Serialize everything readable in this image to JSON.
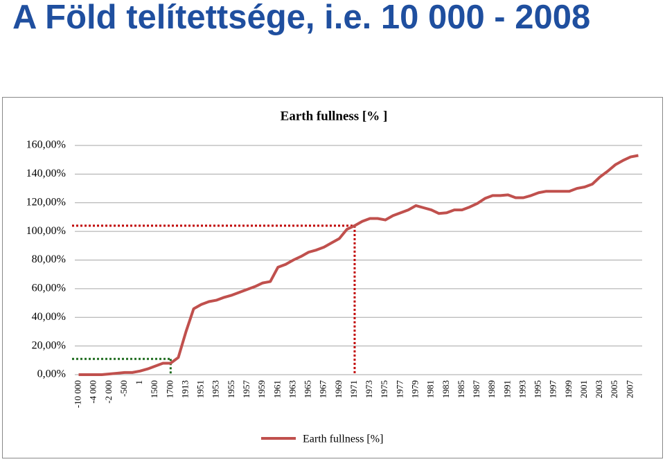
{
  "header": {
    "title": "A Föld telítettsége, i.e. 10 000 - 2008"
  },
  "chart_data": {
    "type": "line",
    "title": "Earth fullness [% ]",
    "categories": [
      "-10 000",
      null,
      "-4 000",
      null,
      "-2 000",
      null,
      "-500",
      null,
      "1",
      null,
      "1500",
      null,
      "1700",
      null,
      "1913",
      null,
      "1951",
      null,
      "1953",
      null,
      "1955",
      null,
      "1957",
      null,
      "1959",
      null,
      "1961",
      null,
      "1963",
      null,
      "1965",
      null,
      "1967",
      null,
      "1969",
      null,
      "1971",
      null,
      "1973",
      null,
      "1975",
      null,
      "1977",
      null,
      "1979",
      null,
      "1981",
      null,
      "1983",
      null,
      "1985",
      null,
      "1987",
      null,
      "1989",
      null,
      "1991",
      null,
      "1993",
      null,
      "1995",
      null,
      "1997",
      null,
      "1999",
      null,
      "2001",
      null,
      "2003",
      null,
      "2005",
      null,
      "2007",
      null
    ],
    "series": [
      {
        "name": "Earth fullness [%]",
        "color": "#c0504d",
        "values": [
          0,
          0,
          0,
          0,
          0.5,
          1,
          1.5,
          1.5,
          2.5,
          4,
          6,
          8,
          8,
          12,
          30,
          46,
          49,
          51,
          52,
          54,
          55.5,
          57.5,
          59.5,
          61.5,
          64,
          65,
          75,
          77,
          80,
          82.5,
          85.5,
          87,
          89,
          92,
          95,
          101.5,
          104,
          107,
          109,
          109,
          108,
          111,
          113,
          115,
          118,
          116.5,
          115,
          112.5,
          113,
          115,
          115,
          117,
          119.5,
          123,
          125,
          125,
          125.5,
          123.5,
          123.5,
          125,
          127,
          128,
          128,
          128,
          128,
          130,
          131,
          133,
          138,
          142,
          146.5,
          149.5,
          152,
          153
        ]
      }
    ],
    "ylim": [
      0,
      160
    ],
    "yticks": [
      {
        "value": 0,
        "label": "0,00%"
      },
      {
        "value": 20,
        "label": "20,00%"
      },
      {
        "value": 40,
        "label": "40,00%"
      },
      {
        "value": 60,
        "label": "60,00%"
      },
      {
        "value": 80,
        "label": "80,00%"
      },
      {
        "value": 100,
        "label": "100,00%"
      },
      {
        "value": 120,
        "label": "120,00%"
      },
      {
        "value": 140,
        "label": "140,00%"
      },
      {
        "value": 160,
        "label": "160,00%"
      }
    ],
    "grid": true,
    "legend": "bottom",
    "reference_lines": [
      {
        "category": "1971",
        "value": 104,
        "color": "#c00000"
      },
      {
        "category": "1700",
        "value": 11,
        "color": "#1e6b1e"
      }
    ]
  }
}
